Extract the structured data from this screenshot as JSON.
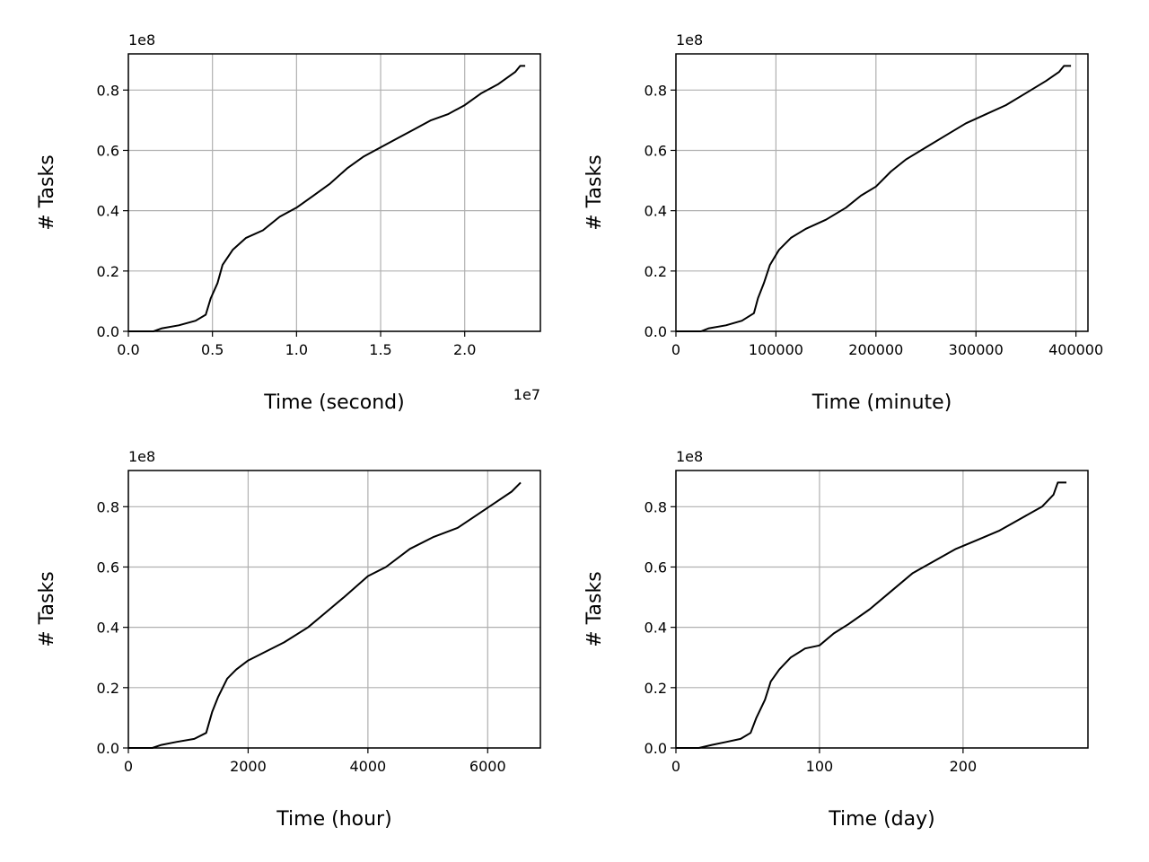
{
  "chart_data": [
    {
      "type": "line",
      "xlabel": "Time (second)",
      "ylabel": "# Tasks",
      "x_offset_label": "1e7",
      "y_offset_label": "1e8",
      "x_unit_scale": 10000000,
      "y_unit_scale": 100000000,
      "xlim": [
        0,
        24500000
      ],
      "ylim": [
        0,
        92000000
      ],
      "x_ticks": [
        0,
        5000000,
        10000000,
        15000000,
        20000000
      ],
      "x_tick_labels": [
        "0.0",
        "0.5",
        "1.0",
        "1.5",
        "2.0"
      ],
      "y_ticks": [
        0,
        20000000,
        40000000,
        60000000,
        80000000
      ],
      "y_tick_labels": [
        "0.0",
        "0.2",
        "0.4",
        "0.6",
        "0.8"
      ],
      "grid": true,
      "series": [
        {
          "color": "#000000",
          "x": [
            0,
            1500000,
            2000000,
            3000000,
            4000000,
            4600000,
            4900000,
            5300000,
            5600000,
            6200000,
            7000000,
            8000000,
            9000000,
            10000000,
            11000000,
            12000000,
            13000000,
            14000000,
            15000000,
            16000000,
            17000000,
            18000000,
            19000000,
            20000000,
            21000000,
            22000000,
            23000000,
            23300000,
            23600000
          ],
          "y": [
            0,
            0,
            1000000,
            2000000,
            3500000,
            5500000,
            11000000,
            16000000,
            22000000,
            27000000,
            31000000,
            33500000,
            38000000,
            41000000,
            45000000,
            49000000,
            54000000,
            58000000,
            61000000,
            64000000,
            67000000,
            70000000,
            72000000,
            75000000,
            79000000,
            82000000,
            86000000,
            88000000,
            88000000
          ]
        }
      ]
    },
    {
      "type": "line",
      "xlabel": "Time (minute)",
      "ylabel": "# Tasks",
      "x_offset_label": "",
      "y_offset_label": "1e8",
      "x_unit_scale": 1,
      "y_unit_scale": 100000000,
      "xlim": [
        0,
        412000
      ],
      "ylim": [
        0,
        92000000
      ],
      "x_ticks": [
        0,
        100000,
        200000,
        300000,
        400000
      ],
      "x_tick_labels": [
        "0",
        "100000",
        "200000",
        "300000",
        "400000"
      ],
      "y_ticks": [
        0,
        20000000,
        40000000,
        60000000,
        80000000
      ],
      "y_tick_labels": [
        "0.0",
        "0.2",
        "0.4",
        "0.6",
        "0.8"
      ],
      "grid": true,
      "series": [
        {
          "color": "#000000",
          "x": [
            0,
            25000,
            33000,
            50000,
            66000,
            78000,
            82000,
            88000,
            94000,
            103000,
            115000,
            130000,
            150000,
            170000,
            185000,
            200000,
            215000,
            230000,
            250000,
            270000,
            290000,
            310000,
            330000,
            350000,
            370000,
            383000,
            388000,
            395000
          ],
          "y": [
            0,
            0,
            1000000,
            2000000,
            3500000,
            6000000,
            11000000,
            16000000,
            22000000,
            27000000,
            31000000,
            34000000,
            37000000,
            41000000,
            45000000,
            48000000,
            53000000,
            57000000,
            61000000,
            65000000,
            69000000,
            72000000,
            75000000,
            79000000,
            83000000,
            86000000,
            88000000,
            88000000
          ]
        }
      ]
    },
    {
      "type": "line",
      "xlabel": "Time (hour)",
      "ylabel": "# Tasks",
      "x_offset_label": "",
      "y_offset_label": "1e8",
      "x_unit_scale": 1,
      "y_unit_scale": 100000000,
      "xlim": [
        0,
        6880
      ],
      "ylim": [
        0,
        92000000
      ],
      "x_ticks": [
        0,
        2000,
        4000,
        6000
      ],
      "x_tick_labels": [
        "0",
        "2000",
        "4000",
        "6000"
      ],
      "y_ticks": [
        0,
        20000000,
        40000000,
        60000000,
        80000000
      ],
      "y_tick_labels": [
        "0.0",
        "0.2",
        "0.4",
        "0.6",
        "0.8"
      ],
      "grid": true,
      "series": [
        {
          "color": "#000000",
          "x": [
            0,
            400,
            550,
            800,
            1100,
            1300,
            1400,
            1500,
            1650,
            1800,
            2000,
            2300,
            2600,
            3000,
            3300,
            3600,
            4000,
            4300,
            4700,
            5100,
            5500,
            5800,
            6100,
            6400,
            6550
          ],
          "y": [
            0,
            0,
            1000000,
            2000000,
            3000000,
            5000000,
            12000000,
            17000000,
            23000000,
            26000000,
            29000000,
            32000000,
            35000000,
            40000000,
            45000000,
            50000000,
            57000000,
            60000000,
            66000000,
            70000000,
            73000000,
            77000000,
            81000000,
            85000000,
            88000000
          ]
        }
      ]
    },
    {
      "type": "line",
      "xlabel": "Time (day)",
      "ylabel": "# Tasks",
      "x_offset_label": "",
      "y_offset_label": "1e8",
      "x_unit_scale": 1,
      "y_unit_scale": 100000000,
      "xlim": [
        0,
        287
      ],
      "ylim": [
        0,
        92000000
      ],
      "x_ticks": [
        0,
        100,
        200
      ],
      "x_tick_labels": [
        "0",
        "100",
        "200"
      ],
      "y_ticks": [
        0,
        20000000,
        40000000,
        60000000,
        80000000
      ],
      "y_tick_labels": [
        "0.0",
        "0.2",
        "0.4",
        "0.6",
        "0.8"
      ],
      "grid": true,
      "series": [
        {
          "color": "#000000",
          "x": [
            0,
            16,
            25,
            35,
            45,
            52,
            56,
            62,
            66,
            72,
            80,
            90,
            100,
            110,
            120,
            135,
            150,
            165,
            180,
            195,
            210,
            225,
            240,
            255,
            263,
            266,
            272
          ],
          "y": [
            0,
            0,
            1000000,
            2000000,
            3000000,
            5000000,
            10000000,
            16000000,
            22000000,
            26000000,
            30000000,
            33000000,
            34000000,
            38000000,
            41000000,
            46000000,
            52000000,
            58000000,
            62000000,
            66000000,
            69000000,
            72000000,
            76000000,
            80000000,
            84000000,
            88000000,
            88000000
          ]
        }
      ]
    }
  ]
}
